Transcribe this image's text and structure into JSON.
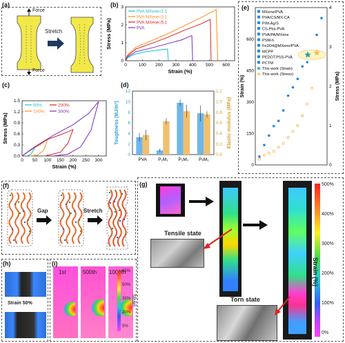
{
  "panel_labels": {
    "a": "(a)",
    "b": "(b)",
    "c": "(c)",
    "d": "(d)",
    "e": "(e)",
    "f": "(f)",
    "g": "(g)",
    "h": "(h)",
    "i": "(i)"
  },
  "panel_a": {
    "force_top": "Force",
    "force_bottom": "Force",
    "stretch": "Stretch"
  },
  "panel_f": {
    "gap": "Gap",
    "stretch": "Stretch"
  },
  "panel_g": {
    "tensile": "Tensile state",
    "torn": "Torn state",
    "colorbar_ticks": [
      "500%",
      "400%",
      "300%",
      "200%",
      "100%",
      "0%"
    ],
    "colorbar_label": "Strain (%)"
  },
  "panel_h": {
    "label": "Strain 50%"
  },
  "panel_i": {
    "labels": [
      "1st",
      "500th",
      "1000th"
    ],
    "colorbar_ticks": [
      "65%",
      "50%",
      "35%",
      "20%",
      "5%"
    ],
    "colorbar_label": "Strain"
  },
  "chart_data": [
    {
      "id": "b",
      "type": "line",
      "xlabel": "Strain (%)",
      "ylabel": "Stress (MPa)",
      "xlim": [
        0,
        650
      ],
      "ylim": [
        0,
        3
      ],
      "xticks": [
        0,
        100,
        200,
        300,
        400,
        500,
        600
      ],
      "yticks": [
        0,
        1,
        2,
        3
      ],
      "legend_position": "top-left",
      "series": [
        {
          "name": "PVA:MXene=1:1",
          "color": "#17becf",
          "points": [
            [
              0,
              0
            ],
            [
              10,
              0.15
            ],
            [
              50,
              0.35
            ],
            [
              120,
              0.5
            ],
            [
              200,
              0.6
            ],
            [
              250,
              0.65
            ],
            [
              255,
              0
            ]
          ]
        },
        {
          "name": "PVA:MXene=3:1",
          "color": "#ff8c1a",
          "points": [
            [
              0,
              0
            ],
            [
              10,
              0.3
            ],
            [
              60,
              0.75
            ],
            [
              150,
              1.1
            ],
            [
              250,
              1.5
            ],
            [
              350,
              1.95
            ],
            [
              450,
              2.4
            ],
            [
              540,
              2.85
            ],
            [
              550,
              0
            ]
          ]
        },
        {
          "name": "PVA:MXene=5:1",
          "color": "#d62728",
          "points": [
            [
              0,
              0
            ],
            [
              10,
              0.25
            ],
            [
              60,
              0.65
            ],
            [
              150,
              0.95
            ],
            [
              250,
              1.3
            ],
            [
              350,
              1.7
            ],
            [
              450,
              2.05
            ],
            [
              505,
              2.3
            ],
            [
              510,
              0
            ]
          ]
        },
        {
          "name": "PVA",
          "color": "#7b2cbf",
          "points": [
            [
              0,
              0
            ],
            [
              10,
              0.2
            ],
            [
              60,
              0.5
            ],
            [
              150,
              0.7
            ],
            [
              250,
              0.95
            ],
            [
              330,
              1.15
            ],
            [
              395,
              1.4
            ],
            [
              400,
              0
            ]
          ]
        }
      ]
    },
    {
      "id": "c",
      "type": "line",
      "xlabel": "Strain (%)",
      "ylabel": "Stress (MPa)",
      "xlim": [
        0,
        330
      ],
      "ylim": [
        0,
        1.5
      ],
      "xticks": [
        0,
        50,
        100,
        150,
        200,
        250,
        300
      ],
      "yticks": [
        0.0,
        0.3,
        0.6,
        0.9,
        1.2,
        1.5
      ],
      "legend_position": "top-left",
      "series": [
        {
          "name": "50%",
          "color": "#17becf",
          "loading": [
            [
              0,
              0
            ],
            [
              20,
              0.1
            ],
            [
              50,
              0.22
            ]
          ],
          "unloading": [
            [
              50,
              0.22
            ],
            [
              35,
              0.05
            ],
            [
              20,
              0
            ]
          ]
        },
        {
          "name": "100%",
          "color": "#ff8c1a",
          "loading": [
            [
              0,
              0
            ],
            [
              30,
              0.15
            ],
            [
              70,
              0.3
            ],
            [
              100,
              0.45
            ]
          ],
          "unloading": [
            [
              100,
              0.45
            ],
            [
              85,
              0.15
            ],
            [
              60,
              0.02
            ],
            [
              30,
              0
            ]
          ]
        },
        {
          "name": "200%",
          "color": "#d62728",
          "loading": [
            [
              0,
              0
            ],
            [
              40,
              0.2
            ],
            [
              100,
              0.45
            ],
            [
              160,
              0.6
            ],
            [
              200,
              0.72
            ]
          ],
          "unloading": [
            [
              200,
              0.72
            ],
            [
              180,
              0.35
            ],
            [
              150,
              0.1
            ],
            [
              90,
              0
            ]
          ]
        },
        {
          "name": "300%",
          "color": "#7b2cbf",
          "loading": [
            [
              0,
              0
            ],
            [
              50,
              0.25
            ],
            [
              120,
              0.55
            ],
            [
              200,
              0.85
            ],
            [
              260,
              1.15
            ],
            [
              300,
              1.48
            ]
          ],
          "unloading": [
            [
              300,
              1.48
            ],
            [
              270,
              0.7
            ],
            [
              230,
              0.25
            ],
            [
              180,
              0.05
            ],
            [
              120,
              0
            ]
          ]
        }
      ]
    },
    {
      "id": "d",
      "type": "bar",
      "categories": [
        "PVA",
        "P₁M₁",
        "P₃M₁",
        "P₅M₁"
      ],
      "ylabel": "Toughness (MJ/m³)",
      "ylabel_right": "Elastic modulus (MPa)",
      "ylim": [
        0,
        12
      ],
      "ylim_right": [
        0,
        1.2
      ],
      "yticks": [
        0,
        2,
        4,
        6,
        8,
        10,
        12
      ],
      "yticks_right": [
        0.0,
        0.2,
        0.4,
        0.6,
        0.8,
        1.0,
        1.2
      ],
      "series": [
        {
          "name": "Toughness",
          "color": "#6fb7e8",
          "axis": "left",
          "values": [
            3.3,
            0.8,
            9.8,
            7.8
          ],
          "errors": [
            0.8,
            0.3,
            0.6,
            1.5
          ]
        },
        {
          "name": "Elastic modulus",
          "color": "#f0c070",
          "axis": "right",
          "values": [
            0.37,
            0.63,
            0.82,
            0.76
          ],
          "errors": [
            0.1,
            0.06,
            0.12,
            0.06
          ]
        }
      ]
    },
    {
      "id": "e",
      "type": "scatter",
      "ylabel": "Strain (%)",
      "ylabel_right": "Stress (MPa)",
      "ylim": [
        0,
        750
      ],
      "ylim_right": [
        0,
        4
      ],
      "yticks": [
        0,
        150,
        300,
        450,
        600
      ],
      "yticks_right": [
        0,
        1,
        2,
        3,
        4
      ],
      "legend_position": "top-left",
      "legend": [
        {
          "name": "MXene/PVA",
          "marker": "tri-down",
          "color": "#1e88e5"
        },
        {
          "name": "PVA/CS/MX-CA",
          "marker": "tri-up-open",
          "color": "#1e88e5"
        },
        {
          "name": "P/M-Ag/S",
          "marker": "square-open",
          "color": "#1e88e5"
        },
        {
          "name": "CS-Pba-PVA",
          "marker": "half-square",
          "color": "#1e88e5"
        },
        {
          "name": "PVA/PA/MXene",
          "marker": "tri-up",
          "color": "#1e88e5"
        },
        {
          "name": "PSM-h",
          "marker": "tri-up-small",
          "color": "#1e88e5"
        },
        {
          "name": "Fe3O4@MXene/PVA",
          "marker": "circle-half",
          "color": "#1e88e5"
        },
        {
          "name": "MCPP",
          "marker": "pentagon",
          "color": "#1e88e5"
        },
        {
          "name": "PEDOT:PSS-PVA",
          "marker": "hexagon",
          "color": "#1e88e5"
        },
        {
          "name": "PCTM",
          "marker": "circle",
          "color": "#1e88e5"
        },
        {
          "name": "This work (Strain)",
          "marker": "star",
          "color": "#2aa198"
        },
        {
          "name": "This work (Stress)",
          "marker": "star",
          "color": "#f2c14e"
        }
      ],
      "strain_points": [
        40,
        95,
        140,
        185,
        210,
        260,
        330,
        370,
        410,
        470,
        490,
        520,
        620,
        700
      ],
      "stress_points": [
        0.15,
        0.25,
        0.3,
        0.35,
        0.45,
        0.55,
        0.7,
        0.85,
        1.0,
        1.25,
        1.55,
        1.95,
        2.85
      ],
      "this_work_strain": 525,
      "this_work_stress": 2.85
    }
  ]
}
